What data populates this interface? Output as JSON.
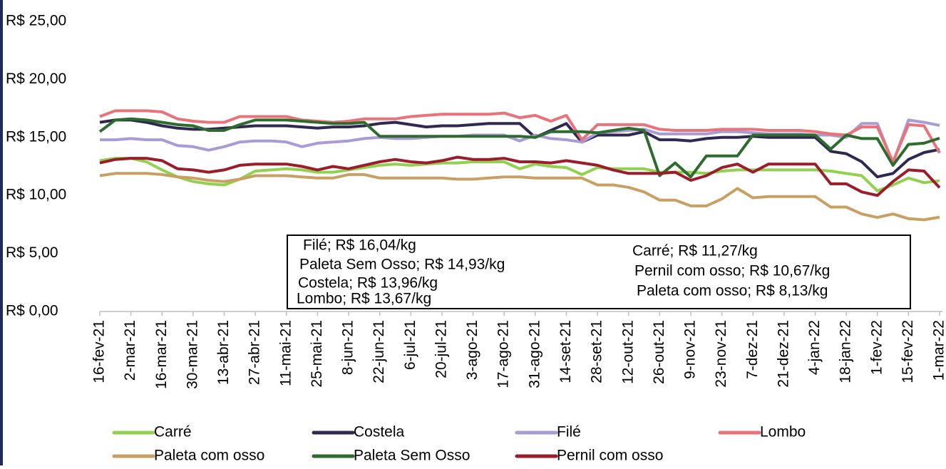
{
  "chart_data": {
    "type": "line",
    "categories": [
      "16-fev-21",
      null,
      "2-mar-21",
      null,
      "16-mar-21",
      null,
      "30-mar-21",
      null,
      "13-abr-21",
      null,
      "27-abr-21",
      null,
      "11-mai-21",
      null,
      "25-mai-21",
      null,
      "8-jun-21",
      null,
      "22-jun-21",
      null,
      "6-jul-21",
      null,
      "20-jul-21",
      null,
      "3-ago-21",
      null,
      "17-ago-21",
      null,
      "31-ago-21",
      null,
      "14-set-21",
      null,
      "28-set-21",
      null,
      "12-out-21",
      null,
      "26-out-21",
      null,
      "9-nov-21",
      null,
      "23-nov-21",
      null,
      "7-dez-21",
      null,
      "21-dez-21",
      null,
      "4-jan-22",
      null,
      "18-jan-22",
      null,
      "1-fev-22",
      null,
      "15-fev-22",
      null,
      "1-mar-22"
    ],
    "series": [
      {
        "name": "Carré",
        "color": "#92d050",
        "values": [
          13.0,
          13.2,
          13.2,
          12.9,
          12.2,
          11.6,
          11.2,
          11.0,
          10.9,
          11.4,
          12.1,
          12.2,
          12.3,
          12.2,
          12.0,
          12.0,
          12.2,
          12.4,
          12.6,
          12.7,
          12.6,
          12.7,
          12.8,
          12.8,
          12.9,
          12.9,
          12.9,
          12.3,
          12.7,
          12.5,
          12.4,
          11.8,
          12.4,
          12.3,
          12.3,
          12.3,
          12.0,
          12.0,
          12.0,
          11.9,
          12.1,
          12.2,
          12.2,
          12.2,
          12.2,
          12.2,
          12.2,
          12.1,
          11.9,
          11.7,
          10.4,
          10.9,
          11.5,
          11.1,
          11.27
        ]
      },
      {
        "name": "Costela",
        "color": "#2f2850",
        "values": [
          16.3,
          16.5,
          16.5,
          16.3,
          16.0,
          15.8,
          15.7,
          15.7,
          15.8,
          15.9,
          16.0,
          16.0,
          16.0,
          15.9,
          15.8,
          15.9,
          15.9,
          16.0,
          16.2,
          16.3,
          16.1,
          15.9,
          16.0,
          16.0,
          16.1,
          16.2,
          16.2,
          16.2,
          15.0,
          15.6,
          16.2,
          14.6,
          15.2,
          15.2,
          15.2,
          15.5,
          14.8,
          14.8,
          14.7,
          14.9,
          15.0,
          15.0,
          15.1,
          15.0,
          15.0,
          15.0,
          15.0,
          13.8,
          13.6,
          12.9,
          11.6,
          11.9,
          13.1,
          13.7,
          13.96
        ]
      },
      {
        "name": "Filé",
        "color": "#a99bd3",
        "values": [
          14.8,
          14.8,
          14.9,
          14.8,
          14.8,
          14.3,
          14.2,
          13.9,
          14.2,
          14.6,
          14.7,
          14.7,
          14.6,
          14.2,
          14.5,
          14.6,
          14.7,
          14.9,
          15.0,
          14.9,
          14.9,
          15.0,
          15.1,
          15.1,
          15.2,
          15.2,
          15.2,
          14.7,
          15.2,
          14.9,
          14.8,
          14.6,
          15.4,
          15.5,
          15.6,
          15.7,
          15.3,
          15.3,
          15.3,
          15.3,
          15.5,
          15.5,
          15.4,
          15.3,
          15.3,
          15.3,
          15.2,
          15.2,
          15.0,
          16.2,
          16.2,
          12.8,
          16.5,
          16.3,
          16.04
        ]
      },
      {
        "name": "Lombo",
        "color": "#e8737a",
        "values": [
          16.8,
          17.3,
          17.3,
          17.3,
          17.2,
          16.6,
          16.4,
          16.3,
          16.3,
          16.8,
          16.8,
          16.8,
          16.8,
          16.5,
          16.4,
          16.3,
          16.4,
          16.6,
          16.6,
          16.6,
          16.8,
          16.9,
          17.0,
          17.0,
          17.0,
          17.0,
          17.1,
          16.7,
          16.9,
          16.4,
          16.9,
          14.8,
          16.1,
          16.1,
          16.1,
          16.1,
          15.7,
          15.6,
          15.6,
          15.6,
          15.7,
          15.7,
          15.7,
          15.6,
          15.6,
          15.6,
          15.5,
          15.3,
          15.2,
          15.9,
          15.9,
          12.9,
          16.1,
          16.0,
          13.67
        ]
      },
      {
        "name": "Paleta com osso",
        "color": "#c9a063",
        "values": [
          11.7,
          11.9,
          11.9,
          11.9,
          11.8,
          11.6,
          11.5,
          11.3,
          11.2,
          11.4,
          11.7,
          11.7,
          11.7,
          11.6,
          11.5,
          11.5,
          11.8,
          11.8,
          11.5,
          11.5,
          11.5,
          11.5,
          11.5,
          11.4,
          11.4,
          11.5,
          11.6,
          11.6,
          11.5,
          11.5,
          11.5,
          11.5,
          10.9,
          10.9,
          10.7,
          10.3,
          9.6,
          9.6,
          9.1,
          9.1,
          9.7,
          10.6,
          9.8,
          9.9,
          9.9,
          9.9,
          9.9,
          9.0,
          9.0,
          8.4,
          8.1,
          8.4,
          8.0,
          7.9,
          8.13
        ]
      },
      {
        "name": "Paleta Sem Osso",
        "color": "#2e6b2e",
        "values": [
          15.5,
          16.5,
          16.6,
          16.5,
          16.3,
          16.1,
          16.0,
          15.6,
          15.6,
          16.1,
          16.5,
          16.5,
          16.5,
          16.4,
          16.3,
          16.2,
          16.2,
          16.3,
          15.1,
          15.1,
          15.1,
          15.1,
          15.1,
          15.1,
          15.1,
          15.1,
          15.1,
          15.1,
          15.0,
          15.5,
          15.5,
          15.5,
          15.4,
          15.6,
          15.8,
          15.6,
          11.7,
          12.8,
          11.6,
          13.4,
          13.4,
          13.4,
          15.2,
          15.2,
          15.2,
          15.2,
          15.2,
          14.0,
          15.2,
          14.9,
          14.9,
          12.6,
          14.4,
          14.5,
          14.93
        ]
      },
      {
        "name": "Pernil com osso",
        "color": "#9b1c2a",
        "values": [
          12.8,
          13.1,
          13.2,
          13.2,
          13.0,
          12.3,
          12.2,
          12.0,
          12.2,
          12.6,
          12.7,
          12.7,
          12.7,
          12.5,
          12.2,
          12.5,
          12.3,
          12.6,
          12.9,
          13.1,
          12.9,
          12.8,
          13.0,
          13.3,
          13.1,
          13.1,
          13.2,
          12.9,
          12.9,
          12.8,
          13.0,
          12.8,
          12.6,
          12.2,
          11.9,
          11.9,
          11.9,
          12.0,
          11.3,
          11.7,
          12.4,
          12.7,
          12.0,
          12.7,
          12.7,
          12.7,
          12.7,
          11.0,
          11.0,
          10.3,
          10.0,
          11.2,
          12.2,
          12.1,
          10.67
        ]
      }
    ],
    "ylim": [
      0,
      25
    ],
    "yticks": [
      {
        "value": 0,
        "label": "R$ 0,00"
      },
      {
        "value": 5,
        "label": "R$ 5,00"
      },
      {
        "value": 10,
        "label": "R$ 10,00"
      },
      {
        "value": 15,
        "label": "R$ 15,00"
      },
      {
        "value": 20,
        "label": "R$ 20,00"
      },
      {
        "value": 25,
        "label": "R$ 25,00"
      }
    ],
    "annotations": [
      "Filé; R$ 16,04/kg",
      "Paleta Sem Osso; R$ 14,93/kg",
      "Costela; R$ 13,96/kg",
      "Lombo; R$ 13,67/kg",
      "Carré; R$ 11,27/kg",
      "Pernil com osso; R$ 10,67/kg",
      "Paleta com osso; R$ 8,13/kg"
    ]
  }
}
